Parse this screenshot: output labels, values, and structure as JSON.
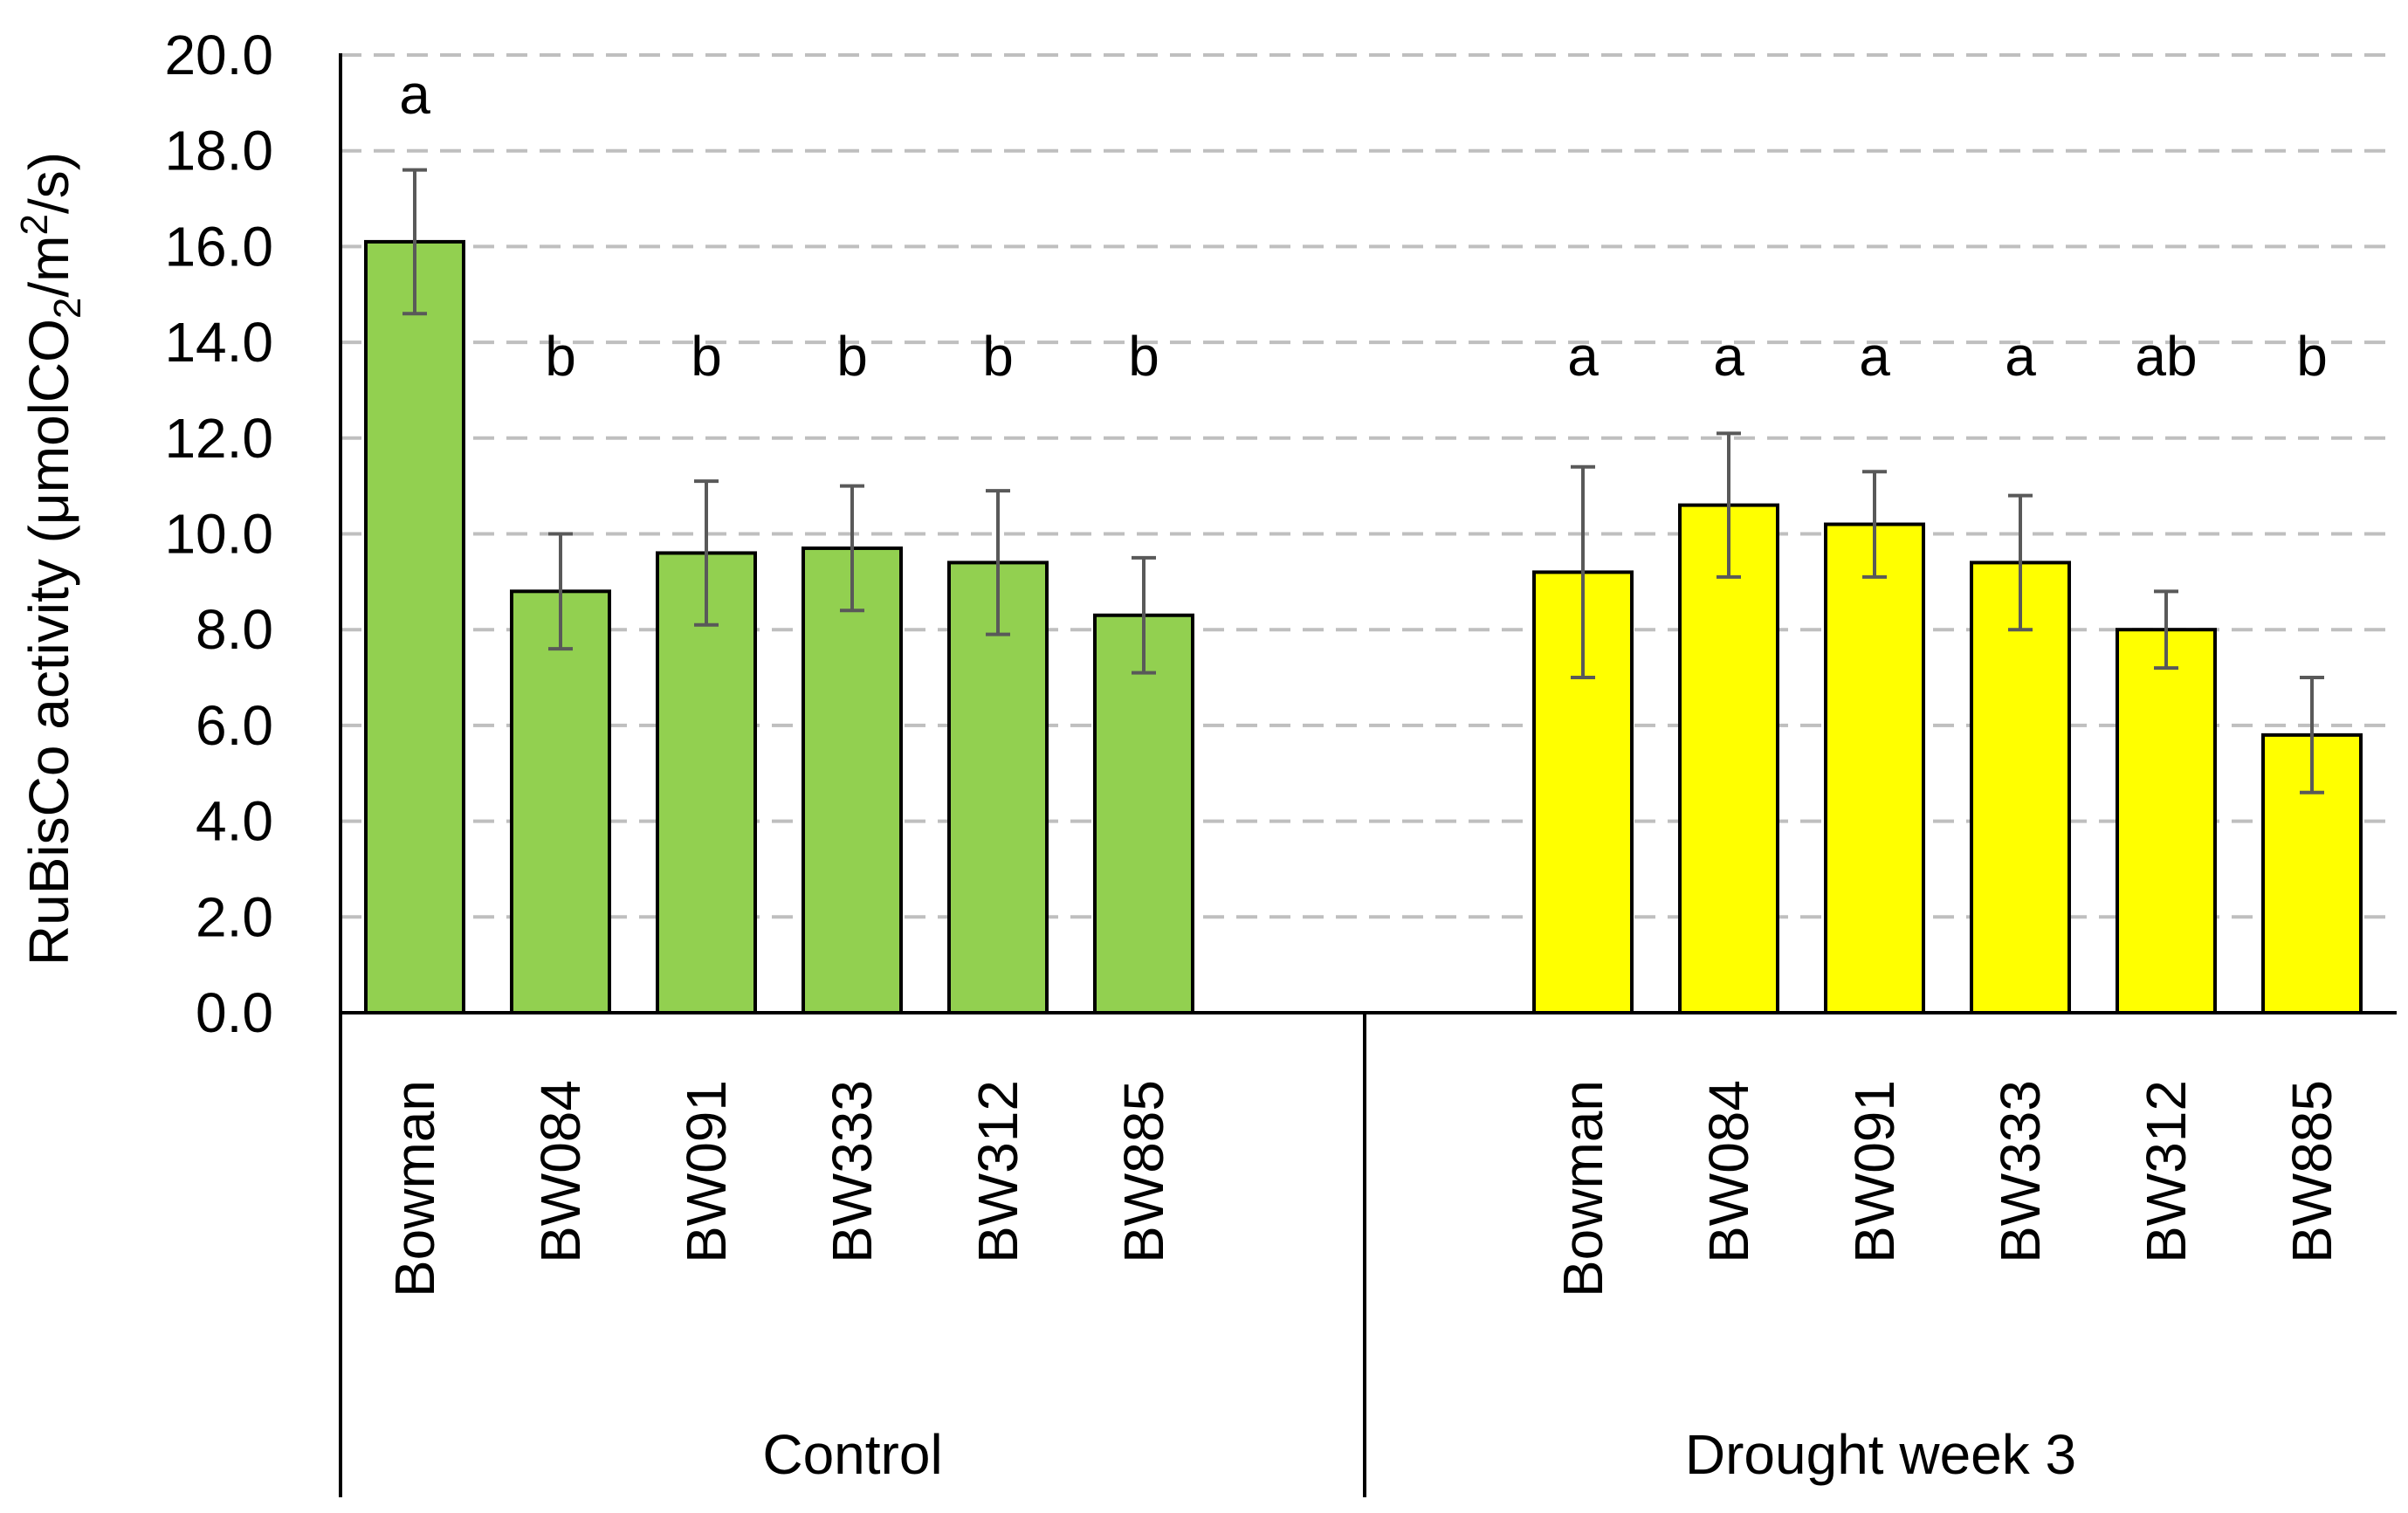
{
  "chart_data": {
    "type": "bar",
    "ylabel": "RuBisCo activity (μmolCO₂/m²/s)",
    "ylabel_parts": {
      "main": "RuBisCo activity (μmolCO",
      "sub": "2",
      "mid": "/m",
      "sup": "2",
      "end": "/s)"
    },
    "ylim": [
      0,
      20
    ],
    "ytick_labels": [
      "0.0",
      "2.0",
      "4.0",
      "6.0",
      "8.0",
      "10.0",
      "12.0",
      "14.0",
      "16.0",
      "18.0",
      "20.0"
    ],
    "grid": true,
    "groups": [
      {
        "name": "Control",
        "color": "#92d050",
        "categories": [
          "Bowman",
          "BW084",
          "BW091",
          "BW333",
          "BW312",
          "BW885"
        ],
        "values": [
          16.1,
          8.8,
          9.6,
          9.7,
          9.4,
          8.3
        ],
        "errors": [
          1.5,
          1.2,
          1.5,
          1.3,
          1.5,
          1.2
        ],
        "letters": [
          "a",
          "b",
          "b",
          "b",
          "b",
          "b"
        ]
      },
      {
        "name": "Drought week 3",
        "color": "#ffff00",
        "categories": [
          "Bowman",
          "BW084",
          "BW091",
          "BW333",
          "BW312",
          "BW885"
        ],
        "values": [
          9.2,
          10.6,
          10.2,
          9.4,
          8.0,
          5.8
        ],
        "errors": [
          2.2,
          1.5,
          1.1,
          1.4,
          0.8,
          1.2
        ],
        "letters": [
          "a",
          "a",
          "a",
          "a",
          "ab",
          "b"
        ]
      }
    ]
  }
}
